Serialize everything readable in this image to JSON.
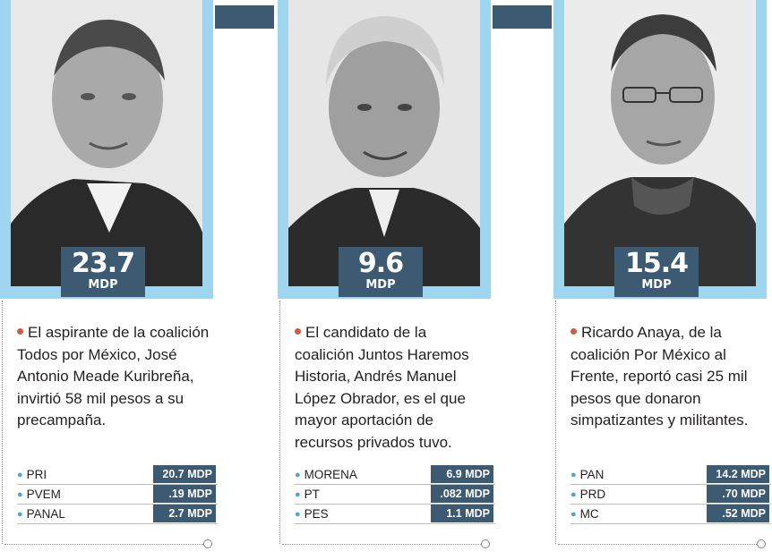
{
  "candidates": [
    {
      "amount": "23.7",
      "unit": "MDP",
      "description": "El aspirante de la coalición Todos por México, José Antonio Meade Kuribreña, invirtió 58 mil pesos a su precampaña.",
      "rows": [
        {
          "party": "PRI",
          "value": "20.7 MDP"
        },
        {
          "party": "PVEM",
          "value": ".19 MDP"
        },
        {
          "party": "PANAL",
          "value": "2.7 MDP"
        }
      ]
    },
    {
      "amount": "9.6",
      "unit": "MDP",
      "description": "El candidato de la coalición Juntos Haremos Historia, Andrés Manuel López Obrador, es el que mayor aportación de recursos privados tuvo.",
      "rows": [
        {
          "party": "MORENA",
          "value": "6.9 MDP"
        },
        {
          "party": "PT",
          "value": ".082 MDP"
        },
        {
          "party": "PES",
          "value": "1.1 MDP"
        }
      ]
    },
    {
      "amount": "15.4",
      "unit": "MDP",
      "description": "Ricardo Anaya, de la coalición Por México al Frente, reportó casi 25 mil pesos que donaron simpatizantes y militantes.",
      "rows": [
        {
          "party": "PAN",
          "value": "14.2 MDP"
        },
        {
          "party": "PRD",
          "value": ".70 MDP"
        },
        {
          "party": "MC",
          "value": ".52 MDP"
        }
      ]
    }
  ],
  "colors": {
    "frame": "#9ed6ef",
    "badge": "#3d5a73",
    "bullet": "#e2553d",
    "rowBullet": "#4aa6d6"
  }
}
